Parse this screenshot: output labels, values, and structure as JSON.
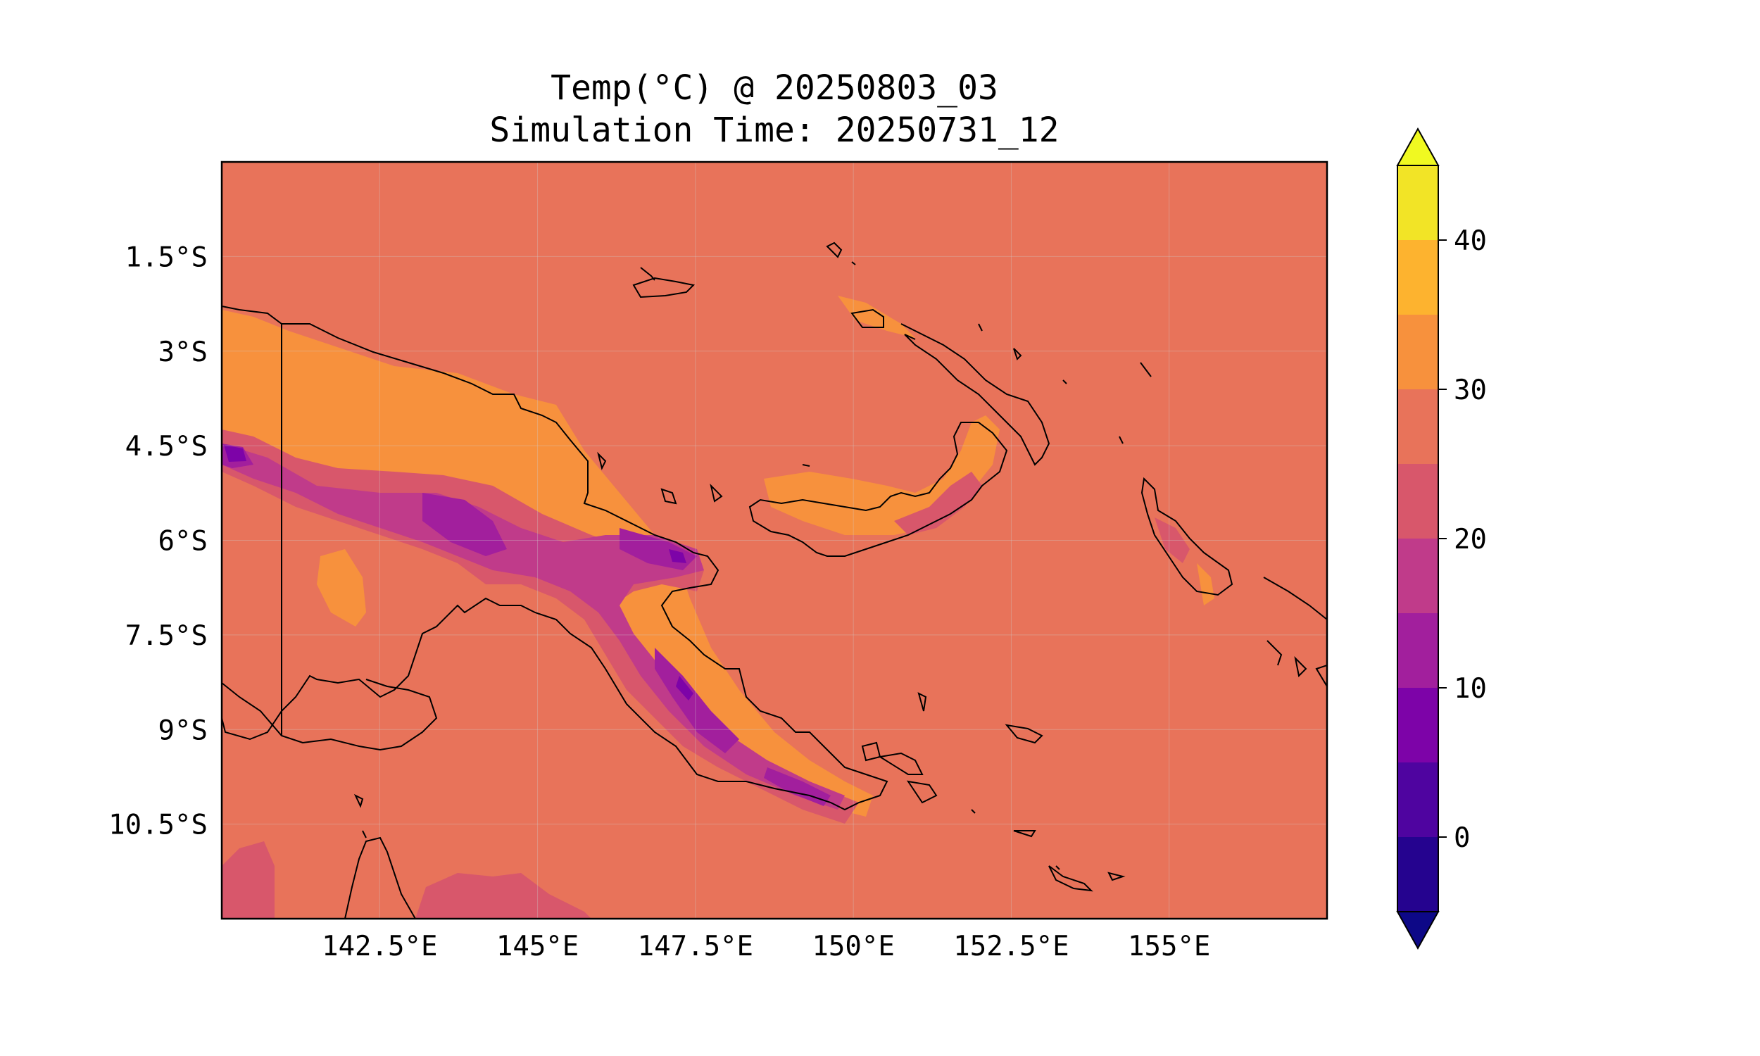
{
  "figure": {
    "title": "Temp(°C) @ 20250803_03",
    "subtitle": "Simulation Time: 20250731_12"
  },
  "map": {
    "region": "Papua New Guinea",
    "lon_range": [
      140.0,
      157.5
    ],
    "lat_range": [
      -12.0,
      0.0
    ],
    "x_ticks": [
      {
        "value": 142.5,
        "label": "142.5°E"
      },
      {
        "value": 145.0,
        "label": "145°E"
      },
      {
        "value": 147.5,
        "label": "147.5°E"
      },
      {
        "value": 150.0,
        "label": "150°E"
      },
      {
        "value": 152.5,
        "label": "152.5°E"
      },
      {
        "value": 155.0,
        "label": "155°E"
      }
    ],
    "y_ticks": [
      {
        "value": -1.5,
        "label": "1.5°S"
      },
      {
        "value": -3.0,
        "label": "3°S"
      },
      {
        "value": -4.5,
        "label": "4.5°S"
      },
      {
        "value": -6.0,
        "label": "6°S"
      },
      {
        "value": -7.5,
        "label": "7.5°S"
      },
      {
        "value": -9.0,
        "label": "9°S"
      },
      {
        "value": -10.5,
        "label": "10.5°S"
      }
    ],
    "background_level_color": "#e8735a",
    "gridlines": true
  },
  "colorbar": {
    "levels": [
      -5,
      0,
      5,
      10,
      15,
      20,
      25,
      30,
      35,
      40,
      45
    ],
    "colors": [
      "#25038f",
      "#4f04a0",
      "#7d03a8",
      "#a21f9d",
      "#c03b8a",
      "#d8576b",
      "#e8735a",
      "#f7913d",
      "#fdb32f",
      "#f2e426"
    ],
    "extend_low_color": "#0d0887",
    "extend_high_color": "#f0f921",
    "ticks": [
      {
        "value": 0,
        "label": "0"
      },
      {
        "value": 10,
        "label": "10"
      },
      {
        "value": 20,
        "label": "20"
      },
      {
        "value": 30,
        "label": "30"
      },
      {
        "value": 40,
        "label": "40"
      }
    ]
  }
}
